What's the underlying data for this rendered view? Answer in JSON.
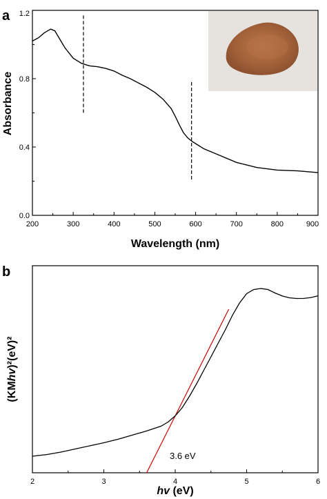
{
  "panel_a_label": "a",
  "panel_b_label": "b",
  "chart_data": [
    {
      "type": "line",
      "xlabel": "Wavelength (nm)",
      "ylabel": "Absorbance",
      "xlim": [
        200,
        900
      ],
      "ylim": [
        0.0,
        1.2
      ],
      "xticks": [
        200,
        300,
        400,
        500,
        600,
        700,
        800,
        900
      ],
      "xtick_labels": [
        "200",
        "300",
        "400",
        "500",
        "600",
        "700",
        "800",
        "900"
      ],
      "yticks": [
        0.0,
        0.4,
        0.8,
        1.2
      ],
      "ytick_labels": [
        "0.0",
        "0.4",
        "0.8",
        "1.2"
      ],
      "grid": false,
      "colors": {
        "curve": "#000000",
        "guides": "#000000"
      },
      "guide_lines_x": [
        325,
        590
      ],
      "inset": "photo of reddish-brown powder sample",
      "series": [
        {
          "x": [
            200,
            215,
            230,
            245,
            255,
            265,
            280,
            300,
            320,
            340,
            360,
            380,
            400,
            420,
            440,
            460,
            480,
            500,
            520,
            540,
            550,
            560,
            570,
            580,
            590,
            600,
            620,
            650,
            700,
            750,
            800,
            850,
            900
          ],
          "values": [
            1.02,
            1.04,
            1.07,
            1.09,
            1.08,
            1.04,
            0.98,
            0.92,
            0.89,
            0.875,
            0.87,
            0.86,
            0.845,
            0.82,
            0.8,
            0.775,
            0.75,
            0.72,
            0.68,
            0.625,
            0.58,
            0.53,
            0.485,
            0.455,
            0.435,
            0.42,
            0.39,
            0.36,
            0.31,
            0.28,
            0.265,
            0.26,
            0.25
          ]
        }
      ]
    },
    {
      "type": "line",
      "xlabel": "hv (eV)",
      "ylabel": "(KMhv)²(eV)²",
      "xlim": [
        2,
        6
      ],
      "ylim": [
        0,
        100
      ],
      "xticks": [
        2,
        3,
        4,
        5,
        6
      ],
      "xtick_labels": [
        "2",
        "3",
        "4",
        "5",
        "6"
      ],
      "grid": false,
      "colors": {
        "curve": "#000000",
        "fit": "#d00000"
      },
      "annotation": "3.6 eV",
      "series": [
        {
          "x": [
            2.0,
            2.2,
            2.4,
            2.6,
            2.8,
            3.0,
            3.2,
            3.4,
            3.6,
            3.8,
            3.9,
            4.0,
            4.1,
            4.2,
            4.3,
            4.4,
            4.5,
            4.6,
            4.7,
            4.8,
            4.9,
            5.0,
            5.1,
            5.2,
            5.3,
            5.4,
            5.5,
            5.6,
            5.7,
            5.8,
            5.9,
            6.0
          ],
          "values": [
            8.0,
            8.8,
            10.0,
            11.5,
            13.0,
            14.5,
            16.2,
            18.2,
            20.2,
            22.5,
            24.5,
            27.5,
            31.5,
            37.0,
            43.0,
            49.5,
            56.0,
            62.5,
            69.0,
            76.0,
            82.0,
            86.5,
            88.5,
            89.0,
            88.5,
            87.0,
            85.5,
            84.5,
            84.0,
            84.0,
            84.5,
            85.5
          ]
        }
      ],
      "fit_line": {
        "x": [
          3.6,
          4.75
        ],
        "values": [
          0,
          79.0
        ]
      }
    }
  ]
}
